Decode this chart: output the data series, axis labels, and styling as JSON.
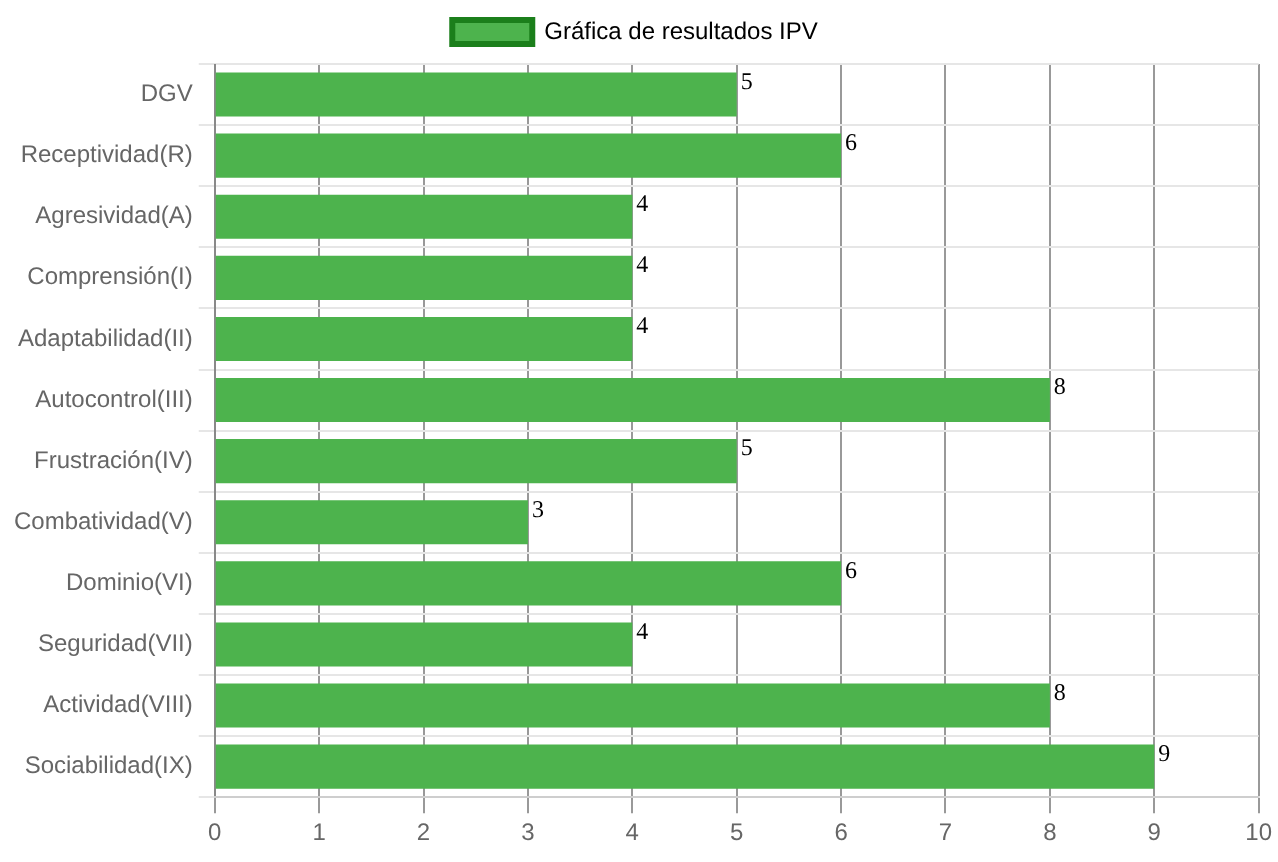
{
  "chart_data": {
    "type": "bar",
    "orientation": "horizontal",
    "categories": [
      "DGV",
      "Receptividad(R)",
      "Agresividad(A)",
      "Comprensión(I)",
      "Adaptabilidad(II)",
      "Autocontrol(III)",
      "Frustración(IV)",
      "Combatividad(V)",
      "Dominio(VI)",
      "Seguridad(VII)",
      "Actividad(VIII)",
      "Sociabilidad(IX)"
    ],
    "series": [
      {
        "name": "Gráfica de resultados IPV",
        "color": "#4db34d",
        "values": [
          5,
          6,
          4,
          4,
          4,
          8,
          5,
          3,
          6,
          4,
          8,
          9
        ]
      }
    ],
    "xlim": [
      0,
      10
    ],
    "xticks": [
      0,
      1,
      2,
      3,
      4,
      5,
      6,
      7,
      8,
      9,
      10
    ],
    "grid": true,
    "legend": "top",
    "data_labels": true
  }
}
